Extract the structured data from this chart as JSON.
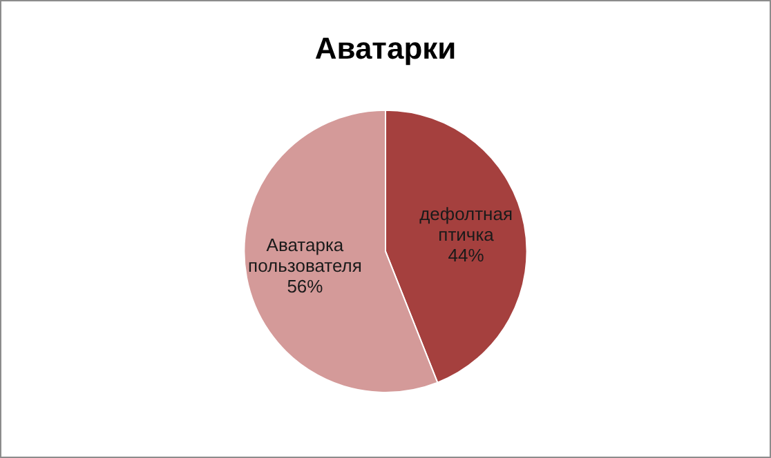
{
  "chart_data": {
    "type": "pie",
    "title": "Аватарки",
    "categories": [
      "дефолтная птичка",
      "Аватарка пользователя"
    ],
    "values": [
      44,
      56
    ],
    "colors": [
      "#a5403e",
      "#d49a99"
    ],
    "value_labels": [
      "44%",
      "56%"
    ],
    "legend": false
  }
}
